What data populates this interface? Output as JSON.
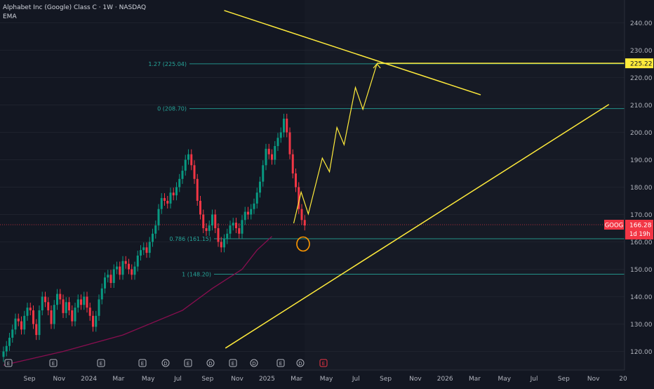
{
  "header": {
    "symbol_line": "Alphabet Inc (Google) Class C · 1W · NASDAQ",
    "indicator": "EMA"
  },
  "badges": {
    "ticker": "GOOG",
    "last_price": "166.28",
    "countdown": "1d 19h",
    "target_price": "225.22"
  },
  "colors": {
    "background": "#131722",
    "up": "#089981",
    "down": "#f23645",
    "ema": "#880e4f",
    "channel": "#ffeb3b",
    "fib": "#26a69a",
    "target": "#ffeb3b"
  },
  "chart_data": {
    "type": "candlestick",
    "interval": "1W",
    "y_axis": {
      "ylim": [
        115,
        250
      ],
      "ticks": [
        "120.00",
        "130.00",
        "140.00",
        "150.00",
        "160.00",
        "170.00",
        "180.00",
        "190.00",
        "200.00",
        "210.00",
        "220.00",
        "230.00",
        "240.00"
      ]
    },
    "x_axis": {
      "ticks": [
        "Sep",
        "Nov",
        "2024",
        "Mar",
        "May",
        "Jul",
        "Sep",
        "Nov",
        "2025",
        "Mar",
        "May",
        "Jul",
        "Sep",
        "Nov",
        "2026",
        "Mar",
        "May",
        "Jul",
        "Sep",
        "Nov",
        "20"
      ]
    },
    "fib_levels": [
      {
        "label": "1.27 (225.04)",
        "value": 225.04
      },
      {
        "label": "0 (208.70)",
        "value": 208.7
      },
      {
        "label": "0.786 (161.15)",
        "value": 161.15
      },
      {
        "label": "1 (148.20)",
        "value": 148.2
      }
    ],
    "price_line": 166.28,
    "closes": [
      120,
      122,
      125,
      128,
      132,
      131,
      128,
      133,
      136,
      135,
      130,
      126,
      135,
      140,
      138,
      135,
      130,
      137,
      141,
      139,
      134,
      138,
      135,
      131,
      136,
      139,
      137,
      140,
      136,
      133,
      129,
      133,
      139,
      143,
      147,
      148,
      145,
      150,
      151,
      148,
      153,
      152,
      150,
      148,
      151,
      155,
      157,
      158,
      156,
      160,
      163,
      166,
      172,
      176,
      175,
      174,
      178,
      177,
      180,
      183,
      186,
      190,
      192,
      188,
      183,
      175,
      170,
      165,
      164,
      166,
      170,
      165,
      160,
      158,
      161,
      163,
      166,
      167,
      165,
      163,
      168,
      171,
      170,
      172,
      174,
      178,
      182,
      188,
      194,
      192,
      190,
      195,
      198,
      200,
      205,
      200,
      192,
      185,
      180,
      172,
      168,
      166
    ],
    "ema_points": [
      [
        0,
        115
      ],
      [
        20,
        120
      ],
      [
        40,
        126
      ],
      [
        60,
        135
      ],
      [
        70,
        143
      ],
      [
        80,
        150
      ],
      [
        85,
        157
      ],
      [
        90,
        162
      ]
    ],
    "channel_lines": [
      {
        "name": "upper",
        "points": [
          [
            74.0,
            244.5
          ],
          [
            160.0,
            213.7
          ]
        ]
      },
      {
        "name": "lower",
        "points": [
          [
            74.4,
            121.2
          ],
          [
            203.0,
            210.2
          ]
        ]
      }
    ],
    "projection": [
      [
        97.3,
        166.8
      ],
      [
        99.8,
        178.2
      ],
      [
        102.2,
        170.2
      ],
      [
        106.9,
        190.6
      ],
      [
        109.3,
        185.6
      ],
      [
        111.8,
        201.8
      ],
      [
        114.2,
        195.5
      ],
      [
        118.0,
        216.4
      ],
      [
        120.5,
        208.4
      ],
      [
        125.2,
        225.0
      ]
    ],
    "target_line": 225.22,
    "marker_value": 160,
    "event_markers": [
      "E",
      "E",
      "E",
      "E",
      "D",
      "E",
      "D",
      "E",
      "D",
      "E",
      "D",
      "E"
    ]
  }
}
